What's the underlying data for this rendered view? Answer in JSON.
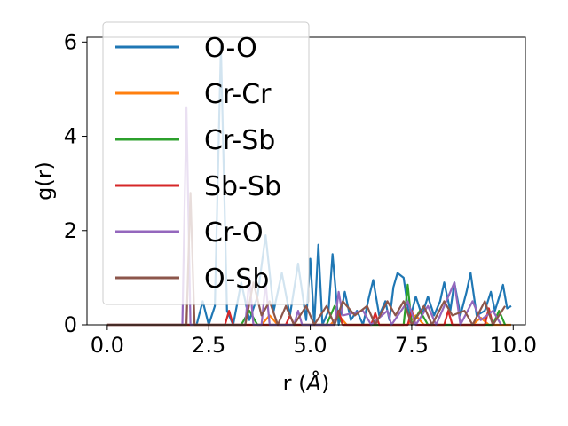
{
  "chart_data": {
    "type": "line",
    "xlabel": "r (",
    "xlabel_unit": "Å",
    "xlabel_close": ")",
    "ylabel": "g(r)",
    "xlim": [
      -0.5,
      10.3
    ],
    "ylim": [
      0,
      6.1
    ],
    "xticks": [
      0.0,
      2.5,
      5.0,
      7.5,
      10.0
    ],
    "xtick_labels": [
      "0.0",
      "2.5",
      "5.0",
      "7.5",
      "10.0"
    ],
    "yticks": [
      0,
      2,
      4,
      6
    ],
    "ytick_labels": [
      "0",
      "2",
      "4",
      "6"
    ],
    "grid": false,
    "legend_position": "upper-left",
    "series": [
      {
        "name": "O-O",
        "color": "#1f77b4",
        "points": [
          [
            0,
            0
          ],
          [
            2.2,
            0
          ],
          [
            2.35,
            0.5
          ],
          [
            2.5,
            0
          ],
          [
            2.65,
            0.4
          ],
          [
            2.8,
            5.9
          ],
          [
            2.95,
            0.3
          ],
          [
            3.1,
            0
          ],
          [
            3.3,
            0.9
          ],
          [
            3.5,
            0.1
          ],
          [
            3.7,
            0.6
          ],
          [
            3.9,
            1.9
          ],
          [
            4.1,
            0.3
          ],
          [
            4.3,
            1.1
          ],
          [
            4.5,
            0.2
          ],
          [
            4.7,
            1.3
          ],
          [
            4.9,
            0.1
          ],
          [
            5.0,
            1.4
          ],
          [
            5.1,
            0
          ],
          [
            5.2,
            1.7
          ],
          [
            5.3,
            0
          ],
          [
            5.45,
            0.3
          ],
          [
            5.55,
            1.5
          ],
          [
            5.7,
            0
          ],
          [
            5.85,
            0.7
          ],
          [
            6.0,
            0.1
          ],
          [
            6.15,
            0.3
          ],
          [
            6.3,
            0
          ],
          [
            6.45,
            0.6
          ],
          [
            6.55,
            0.95
          ],
          [
            6.7,
            0.2
          ],
          [
            6.85,
            0.5
          ],
          [
            6.95,
            0.1
          ],
          [
            7.05,
            0.8
          ],
          [
            7.15,
            1.1
          ],
          [
            7.3,
            1.0
          ],
          [
            7.45,
            0.1
          ],
          [
            7.6,
            0.6
          ],
          [
            7.75,
            0.2
          ],
          [
            7.9,
            0.6
          ],
          [
            8.05,
            0.2
          ],
          [
            8.2,
            0.5
          ],
          [
            8.3,
            0.9
          ],
          [
            8.45,
            0.3
          ],
          [
            8.55,
            0.9
          ],
          [
            8.7,
            0.2
          ],
          [
            8.85,
            0.7
          ],
          [
            8.95,
            1.1
          ],
          [
            9.1,
            0.2
          ],
          [
            9.3,
            0.3
          ],
          [
            9.45,
            0.7
          ],
          [
            9.55,
            0.3
          ],
          [
            9.75,
            0.85
          ],
          [
            9.85,
            0.35
          ],
          [
            9.95,
            0.4
          ]
        ]
      },
      {
        "name": "Cr-Cr",
        "color": "#ff7f0e",
        "points": [
          [
            0,
            0
          ],
          [
            3.8,
            0
          ],
          [
            4.0,
            0.2
          ],
          [
            4.2,
            0
          ],
          [
            5.5,
            0
          ],
          [
            5.7,
            0.2
          ],
          [
            5.9,
            0
          ],
          [
            7.4,
            0
          ],
          [
            7.6,
            0.2
          ],
          [
            7.8,
            0
          ],
          [
            9.0,
            0
          ],
          [
            9.2,
            0.15
          ],
          [
            9.4,
            0
          ],
          [
            9.95,
            0
          ]
        ]
      },
      {
        "name": "Cr-Sb",
        "color": "#2ca02c",
        "points": [
          [
            0,
            0
          ],
          [
            3.3,
            0
          ],
          [
            3.5,
            0.3
          ],
          [
            3.7,
            0
          ],
          [
            5.4,
            0
          ],
          [
            5.6,
            0.4
          ],
          [
            5.8,
            0
          ],
          [
            7.3,
            0
          ],
          [
            7.4,
            0.85
          ],
          [
            7.5,
            0
          ],
          [
            7.7,
            0.3
          ],
          [
            7.9,
            0
          ],
          [
            9.5,
            0
          ],
          [
            9.65,
            0.3
          ],
          [
            9.8,
            0
          ]
        ]
      },
      {
        "name": "Sb-Sb",
        "color": "#d62728",
        "points": [
          [
            0,
            0
          ],
          [
            2.9,
            0
          ],
          [
            3.0,
            0.3
          ],
          [
            3.1,
            0
          ],
          [
            4.4,
            0
          ],
          [
            4.5,
            0.2
          ],
          [
            4.6,
            0
          ],
          [
            5.6,
            0
          ],
          [
            5.7,
            0.3
          ],
          [
            5.8,
            0
          ],
          [
            6.5,
            0
          ],
          [
            6.6,
            0.25
          ],
          [
            6.7,
            0
          ],
          [
            7.4,
            0
          ],
          [
            7.5,
            0.3
          ],
          [
            7.6,
            0
          ],
          [
            8.3,
            0
          ],
          [
            8.4,
            0.3
          ],
          [
            8.5,
            0
          ],
          [
            9.3,
            0
          ],
          [
            9.4,
            0.35
          ],
          [
            9.5,
            0
          ]
        ]
      },
      {
        "name": "Cr-O",
        "color": "#9467bd",
        "points": [
          [
            0,
            0
          ],
          [
            1.85,
            0
          ],
          [
            1.95,
            4.6
          ],
          [
            2.05,
            0
          ],
          [
            3.4,
            0
          ],
          [
            3.5,
            1.0
          ],
          [
            3.6,
            0
          ],
          [
            3.8,
            0
          ],
          [
            3.9,
            0.9
          ],
          [
            4.0,
            0
          ],
          [
            4.6,
            0
          ],
          [
            4.7,
            0.3
          ],
          [
            4.8,
            0
          ],
          [
            5.6,
            0
          ],
          [
            5.7,
            0.7
          ],
          [
            5.8,
            0.2
          ],
          [
            6.3,
            0.3
          ],
          [
            6.5,
            0
          ],
          [
            6.9,
            0.3
          ],
          [
            7.0,
            0
          ],
          [
            7.4,
            0.5
          ],
          [
            7.6,
            0
          ],
          [
            7.9,
            0.4
          ],
          [
            8.1,
            0
          ],
          [
            8.55,
            0.9
          ],
          [
            8.7,
            0
          ],
          [
            9.0,
            0.5
          ],
          [
            9.2,
            0.1
          ],
          [
            9.5,
            0.3
          ],
          [
            9.7,
            0
          ]
        ]
      },
      {
        "name": "O-Sb",
        "color": "#8c564b",
        "points": [
          [
            0,
            0
          ],
          [
            1.95,
            0
          ],
          [
            2.05,
            2.8
          ],
          [
            2.15,
            0
          ],
          [
            3.4,
            0
          ],
          [
            3.6,
            0.9
          ],
          [
            3.8,
            0.2
          ],
          [
            4.0,
            0.5
          ],
          [
            4.2,
            0
          ],
          [
            4.4,
            0.4
          ],
          [
            4.6,
            0
          ],
          [
            4.9,
            0.4
          ],
          [
            5.1,
            0
          ],
          [
            5.4,
            0.4
          ],
          [
            5.6,
            0
          ],
          [
            5.8,
            0.5
          ],
          [
            6.1,
            0.2
          ],
          [
            6.4,
            0.4
          ],
          [
            6.6,
            0
          ],
          [
            6.9,
            0.5
          ],
          [
            7.1,
            0.2
          ],
          [
            7.3,
            0.5
          ],
          [
            7.5,
            0
          ],
          [
            7.8,
            0.4
          ],
          [
            8.0,
            0
          ],
          [
            8.3,
            0.5
          ],
          [
            8.5,
            0.2
          ],
          [
            8.8,
            0.3
          ],
          [
            9.0,
            0
          ],
          [
            9.3,
            0.5
          ],
          [
            9.5,
            0
          ],
          [
            9.8,
            0.4
          ]
        ]
      }
    ]
  }
}
